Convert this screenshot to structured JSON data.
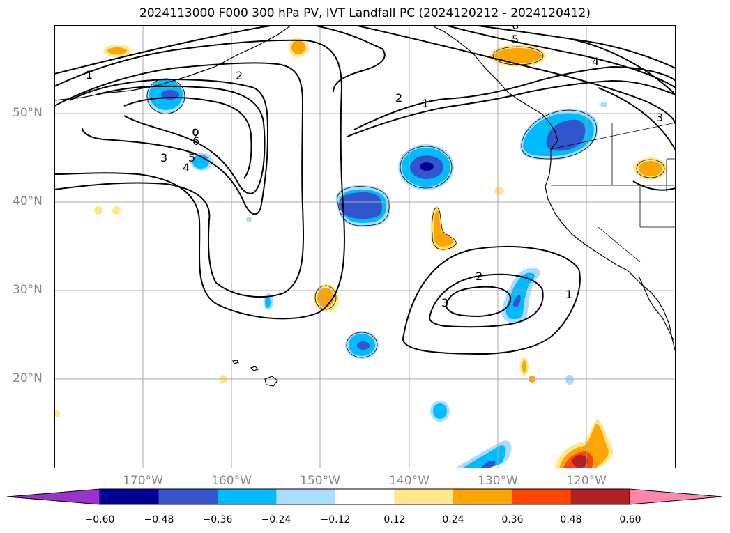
{
  "title": "2024113000 F000 300 hPa PV, IVT Landfall PC (2024120212 - 2024120412)",
  "map": {
    "projection": "cylindrical",
    "lon_range": [
      -180,
      -110
    ],
    "lat_range": [
      10,
      60
    ],
    "gridlines": true,
    "lat_labels": [
      "50°N",
      "40°N",
      "30°N",
      "20°N"
    ],
    "lon_labels": [
      "170°W",
      "160°W",
      "150°W",
      "140°W",
      "130°W",
      "120°W"
    ],
    "contour_labels": [
      "1",
      "2",
      "3",
      "4",
      "5",
      "6",
      "1",
      "2",
      "3",
      "1",
      "2",
      "3",
      "4",
      "5",
      "6"
    ]
  },
  "colorbar": {
    "ticks": [
      "−0.60",
      "−0.48",
      "−0.36",
      "−0.24",
      "−0.12",
      "0.12",
      "0.24",
      "0.36",
      "0.48",
      "0.60"
    ],
    "colors": [
      "#9933cc",
      "#000099",
      "#3355cc",
      "#00bbff",
      "#aaddff",
      "#ffffff",
      "#ffe78a",
      "#ffa500",
      "#ff4500",
      "#b22222",
      "#ff88aa"
    ]
  }
}
